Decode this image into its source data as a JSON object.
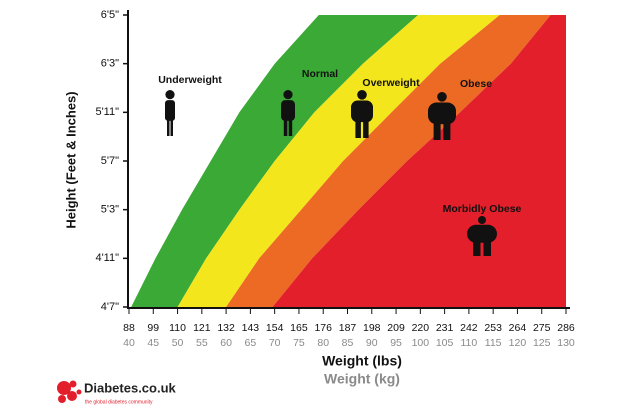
{
  "chart_data": {
    "type": "area",
    "xlabel": "Weight (lbs)",
    "x2label": "Weight (kg)",
    "ylabel": "Height (Feet & Inches)",
    "categories": [
      "4'7\"",
      "4'11\"",
      "5'3\"",
      "5'7\"",
      "5'11\"",
      "6'3\"",
      "6'5\""
    ],
    "xlim": [
      88,
      286
    ],
    "xticks": [
      88,
      99,
      110,
      121,
      132,
      143,
      154,
      165,
      176,
      187,
      198,
      209,
      220,
      231,
      242,
      253,
      264,
      275,
      286
    ],
    "x2lim": [
      40,
      130
    ],
    "x2ticks": [
      40,
      45,
      50,
      55,
      60,
      65,
      70,
      75,
      80,
      85,
      90,
      95,
      100,
      105,
      110,
      115,
      120,
      125,
      130
    ],
    "annotations": [
      "Underweight"
    ],
    "series": [
      {
        "name": "Normal",
        "color": "#3aa935",
        "values": [
          89,
          100,
          112,
          125,
          138,
          154,
          174
        ]
      },
      {
        "name": "Overweight",
        "color": "#f4e61c",
        "values": [
          110,
          123,
          138,
          154,
          172,
          194,
          219
        ]
      },
      {
        "name": "Obese",
        "color": "#ec6a24",
        "values": [
          132,
          147,
          166,
          185,
          207,
          229,
          256
        ]
      },
      {
        "name": "Morbidly Obese",
        "color": "#e21f2b",
        "values": [
          153,
          171,
          192,
          214,
          238,
          261,
          279
        ]
      }
    ]
  },
  "logo": {
    "name": "Diabetes.co.uk",
    "tagline": "the global diabetes community"
  }
}
